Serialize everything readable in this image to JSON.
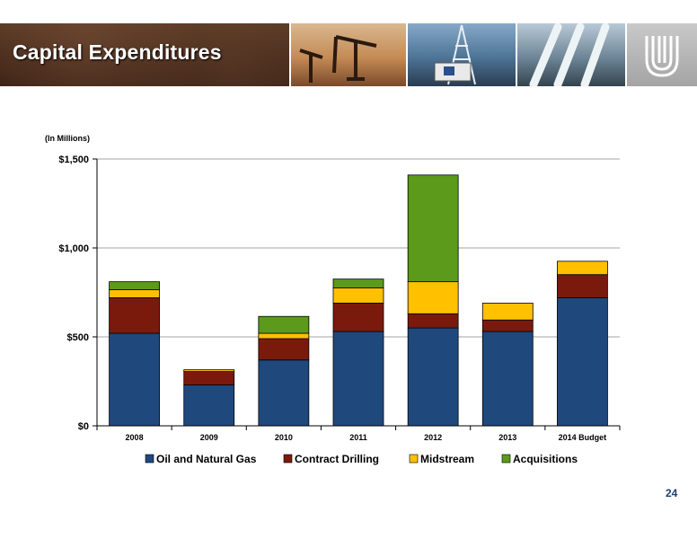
{
  "header": {
    "title": "Capital Expenditures"
  },
  "unit_label": "(In Millions)",
  "page_number": "24",
  "chart_data": {
    "type": "bar",
    "stacked": true,
    "title": "",
    "xlabel": "",
    "ylabel": "",
    "categories": [
      "2008",
      "2009",
      "2010",
      "2011",
      "2012",
      "2013",
      "2014 Budget"
    ],
    "ylim": [
      0,
      1500
    ],
    "yticks": [
      0,
      500,
      1000,
      1500
    ],
    "ytick_labels": [
      "$0",
      "$500",
      "$1,000",
      "$1,500"
    ],
    "grid": true,
    "legend_position": "bottom",
    "series": [
      {
        "name": "Oil and Natural Gas",
        "color": "#1f497d",
        "values": [
          520,
          230,
          370,
          530,
          550,
          530,
          720
        ]
      },
      {
        "name": "Contract Drilling",
        "color": "#7a1a0c",
        "values": [
          200,
          75,
          120,
          160,
          80,
          65,
          130
        ]
      },
      {
        "name": "Midstream",
        "color": "#ffc000",
        "values": [
          45,
          10,
          30,
          85,
          180,
          95,
          75
        ]
      },
      {
        "name": "Acquisitions",
        "color": "#5b9a1b",
        "values": [
          45,
          0,
          95,
          50,
          600,
          0,
          0
        ]
      }
    ]
  }
}
